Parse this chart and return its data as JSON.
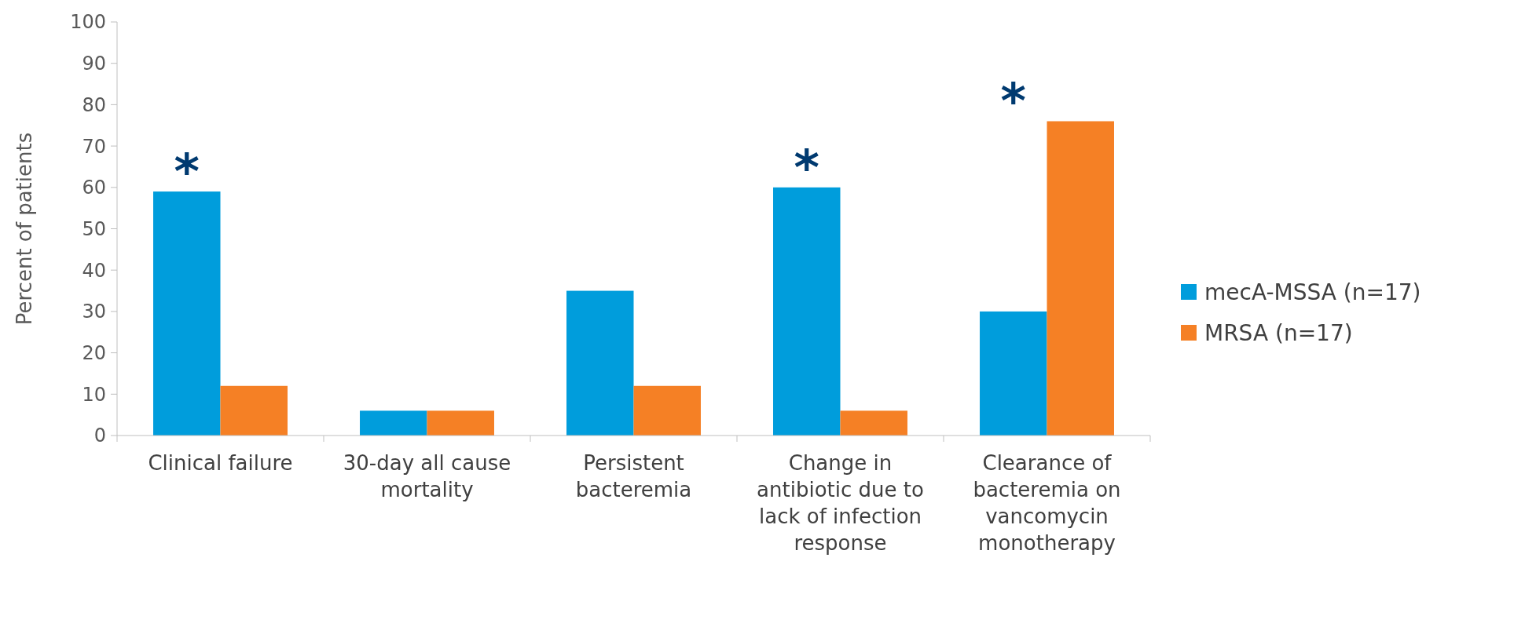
{
  "chart_data": {
    "type": "bar",
    "ylabel": "Percent of patients",
    "categories": [
      "Clinical failure",
      "30-day all cause mortality",
      "Persistent bacteremia",
      "Change in antibiotic due to lack of infection response",
      "Clearance of bacteremia on vancomycin monotherapy"
    ],
    "series": [
      {
        "name": "mecA-MSSA (n=17)",
        "color": "#009ddc",
        "values": [
          59,
          6,
          35,
          60,
          30
        ]
      },
      {
        "name": "MRSA (n=17)",
        "color": "#f58025",
        "values": [
          12,
          6,
          12,
          6,
          76
        ]
      }
    ],
    "ylim": [
      0,
      100
    ],
    "yticks": [
      0,
      10,
      20,
      30,
      40,
      50,
      60,
      70,
      80,
      90,
      100
    ],
    "grid": false,
    "legend": "right",
    "annotations": [
      {
        "text": "*",
        "x": "Clinical failure",
        "y": 59
      },
      {
        "text": "*",
        "x": "Change in antibiotic due to lack of infection response",
        "y": 60
      },
      {
        "text": "*",
        "x": "Clearance of bacteremia on vancomycin monotherapy",
        "y": 76
      }
    ]
  }
}
